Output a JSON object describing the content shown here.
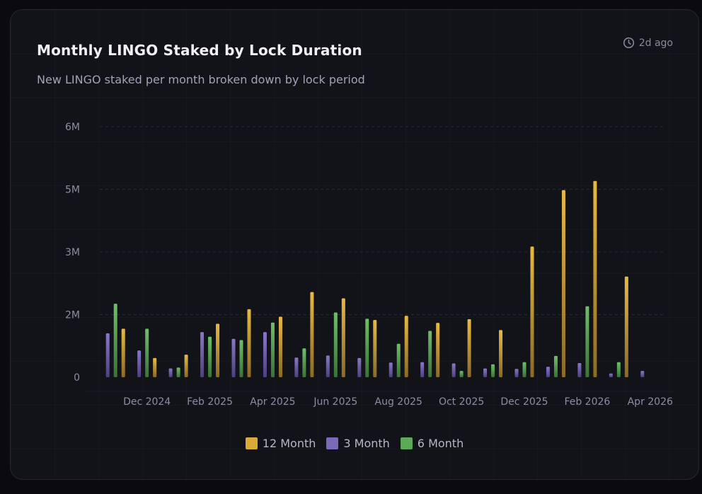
{
  "header": {
    "title": "Monthly LINGO Staked by Lock Duration",
    "subtitle": "New LINGO staked per month broken down by lock period",
    "updated": "2d ago"
  },
  "colors": {
    "m12": "#d9a93a",
    "m3": "#7c6ab8",
    "m6": "#5ea85a"
  },
  "chart_data": {
    "type": "bar",
    "title": "Monthly LINGO Staked by Lock Duration",
    "subtitle": "New LINGO staked per month broken down by lock period",
    "categories": [
      "Nov 2024",
      "Dec 2024",
      "Jan 2025",
      "Feb 2025",
      "Mar 2025",
      "Apr 2025",
      "May 2025",
      "Jun 2025",
      "Jul 2025",
      "Aug 2025",
      "Sep 2025",
      "Oct 2025",
      "Nov 2025",
      "Dec 2025",
      "Jan 2026",
      "Feb 2026",
      "Mar 2026",
      "Apr 2026"
    ],
    "x_tick_labels": [
      "Dec 2024",
      "Feb 2025",
      "Apr 2025",
      "Jun 2025",
      "Aug 2025",
      "Oct 2025",
      "Dec 2025",
      "Feb 2026",
      "Apr 2026"
    ],
    "y_tick_labels": [
      "0",
      "2M",
      "3M",
      "5M",
      "6M"
    ],
    "ylim": [
      0,
      6000000
    ],
    "series": [
      {
        "name": "3 Month",
        "color_key": "m3",
        "values": [
          1050000,
          640000,
          210000,
          1080000,
          920000,
          1080000,
          470000,
          520000,
          460000,
          350000,
          360000,
          330000,
          210000,
          200000,
          250000,
          340000,
          90000,
          150000
        ]
      },
      {
        "name": "6 Month",
        "color_key": "m6",
        "values": [
          1760000,
          1160000,
          230000,
          970000,
          890000,
          1310000,
          690000,
          1550000,
          1400000,
          800000,
          1110000,
          150000,
          310000,
          360000,
          510000,
          1700000,
          360000,
          0
        ]
      },
      {
        "name": "12 Month",
        "color_key": "m12",
        "values": [
          1160000,
          460000,
          540000,
          1280000,
          1630000,
          1450000,
          2040000,
          1890000,
          1370000,
          1470000,
          1300000,
          1390000,
          1130000,
          3130000,
          4480000,
          4700000,
          2410000,
          0
        ]
      }
    ],
    "legend": [
      "12 Month",
      "3 Month",
      "6 Month"
    ],
    "legend_position": "bottom-center",
    "grid": true
  }
}
